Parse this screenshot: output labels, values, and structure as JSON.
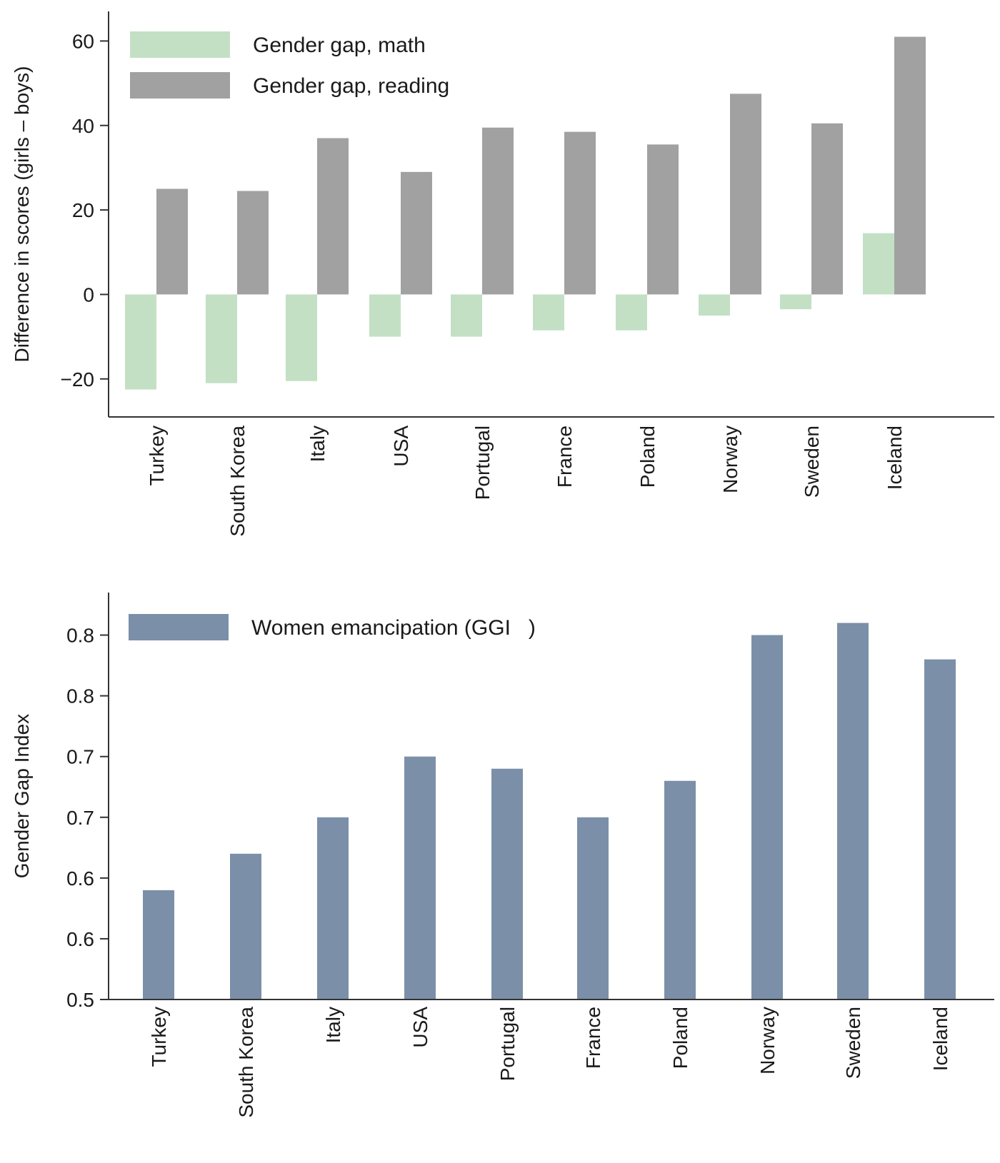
{
  "chart_data": [
    {
      "type": "bar",
      "categories": [
        "Turkey",
        "South Korea",
        "Italy",
        "USA",
        "Portugal",
        "France",
        "Poland",
        "Norway",
        "Sweden",
        "Iceland"
      ],
      "series": [
        {
          "name": "Gender gap, math",
          "color": "#c3e0c5",
          "values": [
            -22.5,
            -21,
            -20.5,
            -10,
            -10,
            -8.5,
            -8.5,
            -5,
            -3.5,
            14.5
          ]
        },
        {
          "name": "Gender gap, reading",
          "color": "#a1a1a1",
          "values": [
            25,
            24.5,
            37,
            29,
            39.5,
            38.5,
            35.5,
            47.5,
            40.5,
            61
          ]
        }
      ],
      "ylabel": "Difference in scores (girls – boys)",
      "yticks": [
        -20,
        0,
        20,
        40,
        60
      ],
      "ytick_labels": [
        "−20",
        "0",
        "20",
        "40",
        "60"
      ],
      "ylim": [
        -29,
        67
      ],
      "grid": false,
      "legend_position": "top-left"
    },
    {
      "type": "bar",
      "categories": [
        "Turkey",
        "South Korea",
        "Italy",
        "USA",
        "Portugal",
        "France",
        "Poland",
        "Norway",
        "Sweden",
        "Iceland"
      ],
      "series": [
        {
          "name": "Women emancipation (GGI   )",
          "color": "#7b8fa8",
          "values": [
            0.59,
            0.62,
            0.65,
            0.7,
            0.69,
            0.65,
            0.68,
            0.8,
            0.81,
            0.78
          ]
        }
      ],
      "ylabel": "Gender Gap Index",
      "yticks": [
        0.5,
        0.55,
        0.6,
        0.65,
        0.7,
        0.75,
        0.8
      ],
      "ytick_labels": [
        "0.5",
        "0.6",
        "0.6",
        "0.7",
        "0.7",
        "0.8",
        "0.8"
      ],
      "ylim": [
        0.5,
        0.835
      ],
      "grid": false,
      "legend_position": "top-left"
    }
  ]
}
